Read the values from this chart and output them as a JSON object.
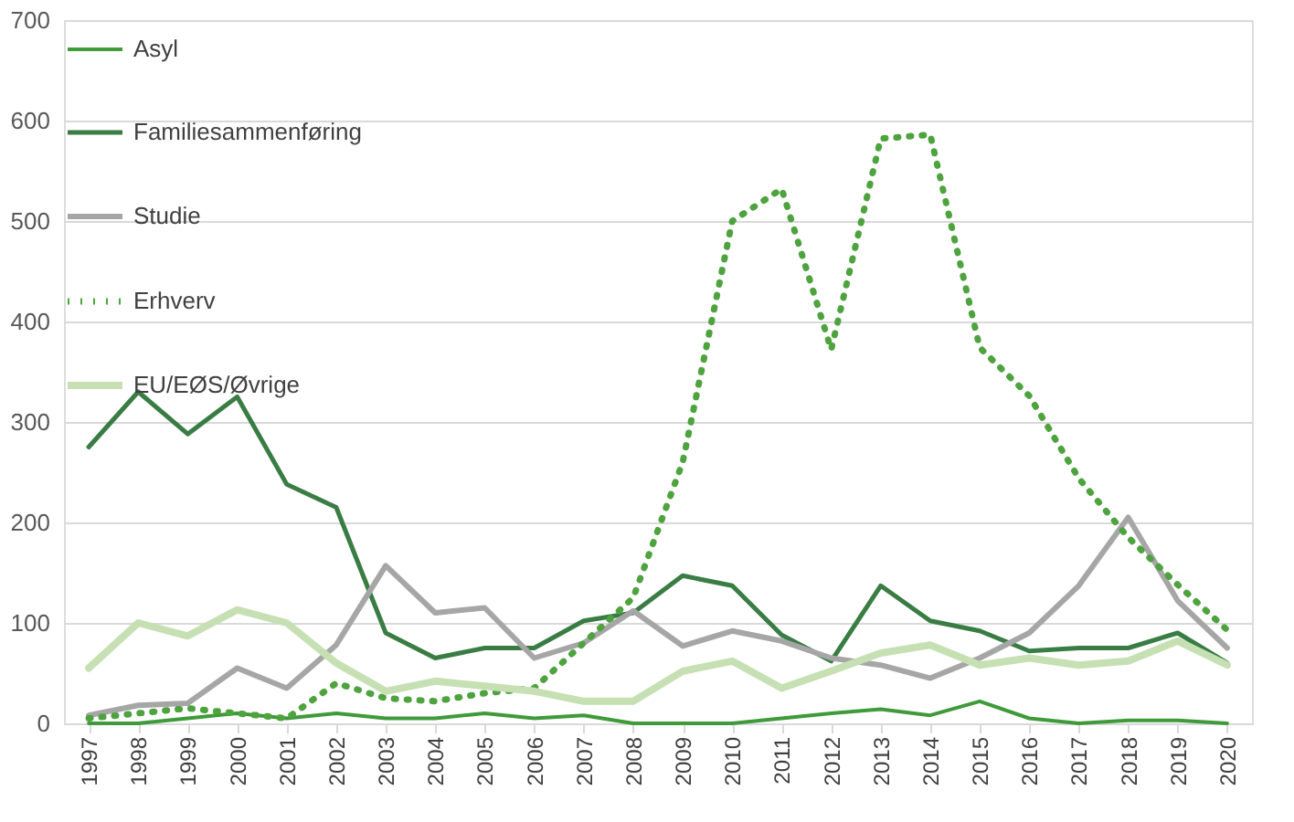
{
  "chart_data": {
    "type": "line",
    "categories": [
      "1997",
      "1998",
      "1999",
      "2000",
      "2001",
      "2002",
      "2003",
      "2004",
      "2005",
      "2006",
      "2007",
      "2008",
      "2009",
      "2010",
      "2011",
      "2012",
      "2013",
      "2014",
      "2015",
      "2016",
      "2017",
      "2018",
      "2019",
      "2020"
    ],
    "ylim": [
      0,
      700
    ],
    "yticks": [
      0,
      100,
      200,
      300,
      400,
      500,
      600,
      700
    ],
    "grid": "y",
    "legend": "top left",
    "series": [
      {
        "name": "Asyl",
        "color": "#3f9a3a",
        "line_style": "solid",
        "values": [
          0,
          0,
          5,
          10,
          5,
          10,
          5,
          5,
          10,
          5,
          8,
          0,
          0,
          0,
          5,
          10,
          14,
          8,
          22,
          5,
          0,
          3,
          3,
          0
        ]
      },
      {
        "name": "Familiesammenføring",
        "color": "#3a7d44",
        "line_style": "solid",
        "values": [
          275,
          330,
          288,
          325,
          238,
          215,
          90,
          65,
          75,
          75,
          102,
          110,
          147,
          137,
          88,
          62,
          137,
          102,
          92,
          72,
          75,
          75,
          90,
          60
        ]
      },
      {
        "name": "Studie",
        "color": "#a6a6a6",
        "line_style": "solid",
        "values": [
          8,
          18,
          20,
          55,
          35,
          78,
          157,
          110,
          115,
          65,
          80,
          112,
          77,
          92,
          82,
          65,
          58,
          45,
          65,
          90,
          137,
          205,
          122,
          75
        ]
      },
      {
        "name": "Erhverv",
        "color": "#4ea33f",
        "line_style": "dotted",
        "values": [
          5,
          10,
          15,
          10,
          5,
          40,
          25,
          22,
          30,
          35,
          80,
          125,
          260,
          500,
          532,
          372,
          582,
          586,
          374,
          326,
          244,
          185,
          138,
          93
        ]
      },
      {
        "name": "EU/EØS/Øvrige",
        "color": "#c6e0b4",
        "line_style": "solid",
        "values": [
          55,
          100,
          87,
          113,
          100,
          60,
          32,
          42,
          37,
          32,
          22,
          22,
          52,
          62,
          35,
          52,
          70,
          78,
          58,
          65,
          58,
          62,
          82,
          58
        ]
      }
    ]
  }
}
